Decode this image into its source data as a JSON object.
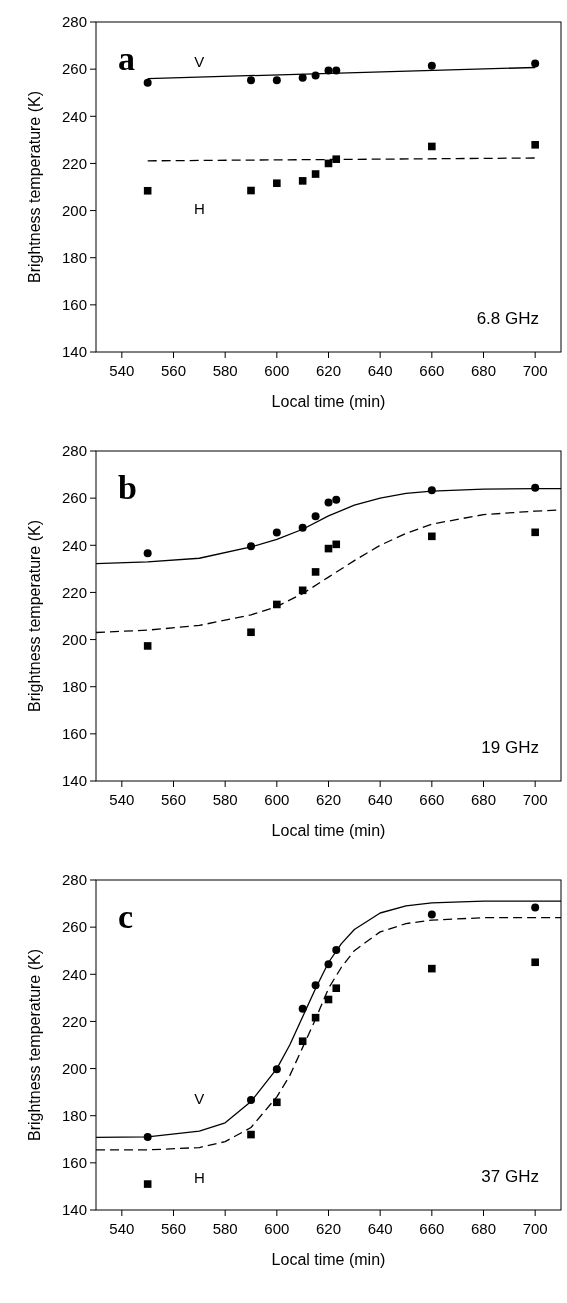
{
  "chart_data": [
    {
      "type": "scatter",
      "title": "a",
      "xlabel": "Local time (min)",
      "ylabel": "Brightness temperature (K)",
      "xlim": [
        530,
        710
      ],
      "ylim": [
        140,
        280
      ],
      "xticks": [
        540,
        560,
        580,
        600,
        620,
        640,
        660,
        680,
        700
      ],
      "yticks": [
        140,
        160,
        180,
        200,
        220,
        240,
        260,
        280
      ],
      "annotations": [
        "6.8 GHz"
      ],
      "series": [
        {
          "type": "scatter",
          "name": "V",
          "marker": "circle",
          "color": "#000000",
          "x": [
            550,
            590,
            600,
            610,
            615,
            620,
            623,
            660,
            700
          ],
          "values": [
            254.2,
            255.3,
            255.3,
            256.3,
            257.3,
            259.4,
            259.4,
            261.4,
            262.4
          ]
        },
        {
          "type": "scatter",
          "name": "H",
          "marker": "square",
          "color": "#000000",
          "x": [
            550,
            590,
            600,
            610,
            615,
            620,
            623,
            660,
            700
          ],
          "values": [
            208.4,
            208.5,
            211.6,
            212.6,
            215.5,
            220,
            221.8,
            227.2,
            227.9
          ]
        },
        {
          "type": "line",
          "line_style": "solid",
          "color": "#000000",
          "x": [
            550,
            700
          ],
          "values": [
            256,
            260.7
          ]
        },
        {
          "type": "line",
          "line_style": "dashed",
          "color": "#000000",
          "x": [
            550,
            700
          ],
          "values": [
            221.1,
            222.3
          ]
        }
      ]
    },
    {
      "type": "scatter",
      "title": "b",
      "xlabel": "Local time (min)",
      "ylabel": "Brightness temperature (K)",
      "xlim": [
        530,
        710
      ],
      "ylim": [
        140,
        280
      ],
      "xticks": [
        540,
        560,
        580,
        600,
        620,
        640,
        660,
        680,
        700
      ],
      "yticks": [
        140,
        160,
        180,
        200,
        220,
        240,
        260,
        280
      ],
      "annotations": [
        "19 GHz"
      ],
      "series": [
        {
          "type": "scatter",
          "marker": "circle",
          "color": "#000000",
          "x": [
            550,
            590,
            600,
            610,
            615,
            620,
            623,
            660,
            700
          ],
          "values": [
            236.6,
            239.6,
            245.4,
            247.4,
            252.3,
            258.2,
            259.3,
            263.4,
            264.4
          ]
        },
        {
          "type": "scatter",
          "marker": "square",
          "color": "#000000",
          "x": [
            550,
            590,
            600,
            610,
            615,
            620,
            623,
            660,
            700
          ],
          "values": [
            197.3,
            203.1,
            214.9,
            220.9,
            228.7,
            238.6,
            240.4,
            243.8,
            245.5
          ]
        },
        {
          "type": "line",
          "line_style": "solid",
          "color": "#000000",
          "x": [
            530,
            550,
            570,
            590,
            600,
            610,
            620,
            630,
            640,
            650,
            660,
            680,
            700,
            710
          ],
          "values": [
            232.2,
            233,
            234.5,
            239.3,
            242.5,
            246.8,
            252.5,
            257,
            260,
            262,
            263,
            263.8,
            264,
            264
          ]
        },
        {
          "type": "line",
          "line_style": "dashed",
          "color": "#000000",
          "x": [
            530,
            550,
            570,
            590,
            600,
            610,
            620,
            630,
            640,
            650,
            660,
            680,
            700,
            710
          ],
          "values": [
            203,
            204,
            206,
            210.5,
            214,
            219.5,
            226.5,
            233.5,
            240,
            245,
            249,
            253,
            254.5,
            255
          ]
        }
      ]
    },
    {
      "type": "scatter",
      "title": "c",
      "xlabel": "Local time (min)",
      "ylabel": "Brightness temperature (K)",
      "xlim": [
        530,
        710
      ],
      "ylim": [
        140,
        280
      ],
      "xticks": [
        540,
        560,
        580,
        600,
        620,
        640,
        660,
        680,
        700
      ],
      "yticks": [
        140,
        160,
        180,
        200,
        220,
        240,
        260,
        280
      ],
      "annotations": [
        "37 GHz"
      ],
      "series": [
        {
          "type": "scatter",
          "name": "V",
          "marker": "circle",
          "color": "#000000",
          "x": [
            550,
            590,
            600,
            610,
            615,
            620,
            623,
            660,
            700
          ],
          "values": [
            171,
            186.7,
            199.7,
            225.4,
            235.4,
            244.3,
            250.3,
            265.4,
            268.3
          ]
        },
        {
          "type": "scatter",
          "name": "H",
          "marker": "square",
          "color": "#000000",
          "x": [
            550,
            590,
            600,
            610,
            615,
            620,
            623,
            660,
            700
          ],
          "values": [
            151,
            172,
            185.7,
            211.6,
            221.6,
            229.3,
            234.1,
            242.4,
            245.1
          ]
        },
        {
          "type": "line",
          "line_style": "solid",
          "color": "#000000",
          "x": [
            530,
            550,
            570,
            580,
            590,
            600,
            605,
            610,
            615,
            620,
            625,
            630,
            640,
            650,
            660,
            680,
            710
          ],
          "values": [
            170.8,
            171,
            173.5,
            177,
            186,
            200,
            210,
            222,
            234,
            245,
            253,
            259,
            266,
            269,
            270.3,
            271,
            271
          ]
        },
        {
          "type": "line",
          "line_style": "dashed",
          "color": "#000000",
          "x": [
            530,
            550,
            570,
            580,
            590,
            600,
            605,
            610,
            615,
            620,
            625,
            630,
            640,
            650,
            660,
            680,
            710
          ],
          "values": [
            165.5,
            165.5,
            166.5,
            169,
            175,
            188,
            197,
            209,
            221,
            234,
            243,
            250,
            258,
            261.5,
            263,
            264,
            264
          ]
        }
      ]
    }
  ]
}
